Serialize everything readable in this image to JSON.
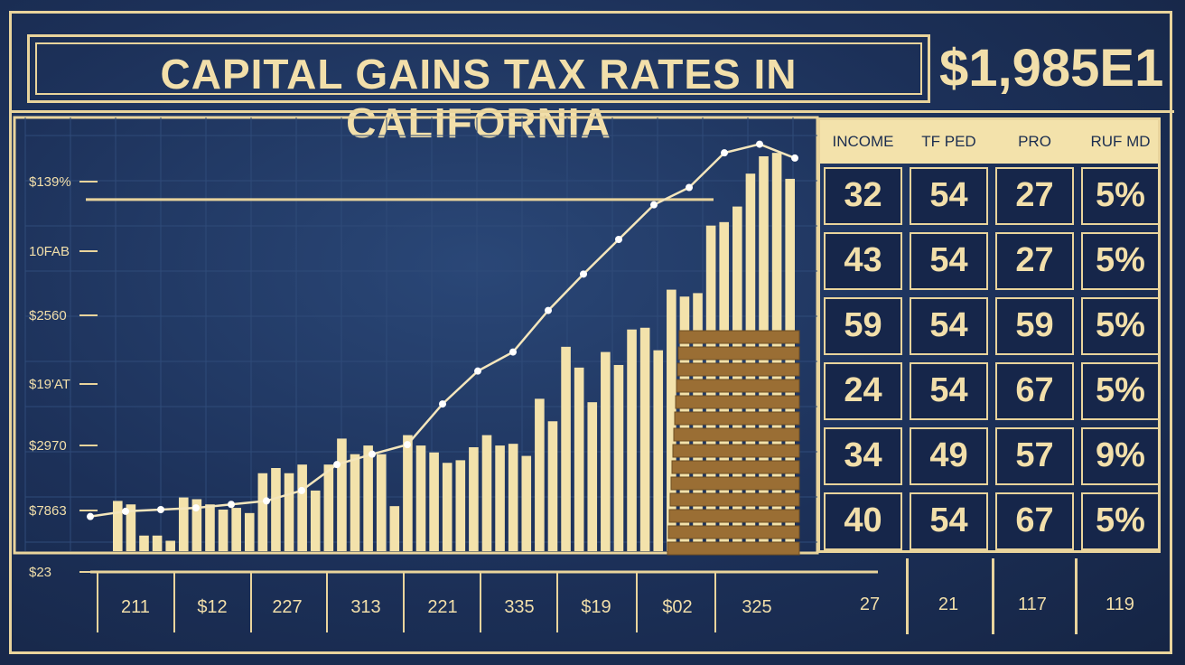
{
  "title": "CAPITAL GAINS TAX RATES IN CALIFORNIA",
  "amount": "$1,985E1",
  "colors": {
    "background": "#1c3058",
    "accent": "#e9d49c",
    "bar": "#f3e2ab",
    "coins": "#9a6e34"
  },
  "chart_data": {
    "type": "bar",
    "title": "CAPITAL GAINS TAX RATES IN CALIFORNIA",
    "y_tick_labels": [
      "$139%",
      "10FAB",
      "$2560",
      "$19'AT",
      "$2970",
      "$7863",
      "$23"
    ],
    "x_tick_labels": [
      "211",
      "$12",
      "227",
      "313",
      "221",
      "335",
      "$19",
      "$02",
      "325"
    ],
    "values": [
      58,
      54,
      18,
      18,
      12,
      62,
      60,
      54,
      48,
      50,
      44,
      90,
      96,
      90,
      100,
      70,
      100,
      130,
      112,
      122,
      112,
      52,
      134,
      122,
      114,
      102,
      105,
      120,
      134,
      122,
      124,
      110,
      176,
      150,
      236,
      212,
      172,
      230,
      215,
      256,
      258,
      232,
      302,
      294,
      298,
      376,
      380,
      398,
      436,
      456,
      460,
      430
    ],
    "line": [
      40,
      46,
      48,
      50,
      54,
      58,
      70,
      100,
      112,
      123,
      170,
      208,
      230,
      278,
      320,
      360,
      400,
      420,
      460,
      470,
      454
    ],
    "reference_line": 406,
    "ylim": [
      0,
      480
    ]
  },
  "table": {
    "headers": [
      "INCOME",
      "TF PED",
      "PRO",
      "RUF MD"
    ],
    "rows": [
      [
        "32",
        "54",
        "27",
        "5%"
      ],
      [
        "43",
        "54",
        "27",
        "5%"
      ],
      [
        "59",
        "54",
        "59",
        "5%"
      ],
      [
        "24",
        "54",
        "67",
        "5%"
      ],
      [
        "34",
        "49",
        "57",
        "9%"
      ],
      [
        "40",
        "54",
        "67",
        "5%"
      ]
    ],
    "footer": [
      "27",
      "21",
      "117",
      "119"
    ]
  }
}
